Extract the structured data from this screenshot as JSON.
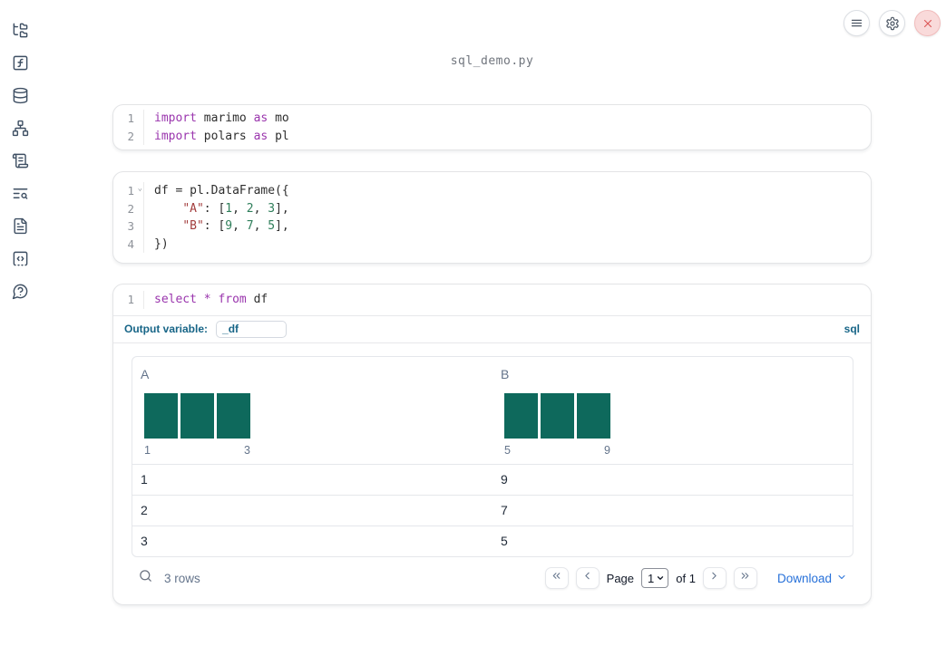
{
  "colors": {
    "accent_sql": "#176587",
    "hist_bar": "#0e695c",
    "link_blue": "#2670d9",
    "keyword": "#9a35ad",
    "string": "#a33d3d",
    "number": "#2e7e5a",
    "code_plain": "#2e2e2e",
    "close_red": "#dc5a5a"
  },
  "sidebar": {
    "items": [
      {
        "icon": "file-tree-icon"
      },
      {
        "icon": "function-square-icon"
      },
      {
        "icon": "database-icon"
      },
      {
        "icon": "dependency-graph-icon"
      },
      {
        "icon": "scroll-outline-icon"
      },
      {
        "icon": "logs-search-icon"
      },
      {
        "icon": "documentation-icon"
      },
      {
        "icon": "snippets-icon"
      },
      {
        "icon": "help-chat-icon"
      }
    ]
  },
  "topbar": {
    "buttons": [
      {
        "icon": "menu-icon"
      },
      {
        "icon": "gear-icon"
      },
      {
        "icon": "close-icon"
      }
    ]
  },
  "notebook": {
    "title": "sql_demo.py"
  },
  "cells": [
    {
      "name": "imports-cell",
      "lines": [
        {
          "num": "1",
          "tokens": [
            [
              "kw",
              "import"
            ],
            [
              "pl",
              " marimo "
            ],
            [
              "kw",
              "as"
            ],
            [
              "pl",
              " mo"
            ]
          ]
        },
        {
          "num": "2",
          "tokens": [
            [
              "kw",
              "import"
            ],
            [
              "pl",
              " polars "
            ],
            [
              "kw",
              "as"
            ],
            [
              "pl",
              " pl"
            ]
          ]
        }
      ]
    },
    {
      "name": "dataframe-cell",
      "lines": [
        {
          "num": "1",
          "fold": true,
          "tokens": [
            [
              "pl",
              "df = pl.DataFrame({"
            ]
          ]
        },
        {
          "num": "2",
          "tokens": [
            [
              "pl",
              "    "
            ],
            [
              "str",
              "\"A\""
            ],
            [
              "pl",
              ": ["
            ],
            [
              "num",
              "1"
            ],
            [
              "pl",
              ", "
            ],
            [
              "num",
              "2"
            ],
            [
              "pl",
              ", "
            ],
            [
              "num",
              "3"
            ],
            [
              "pl",
              "],"
            ]
          ]
        },
        {
          "num": "3",
          "tokens": [
            [
              "pl",
              "    "
            ],
            [
              "str",
              "\"B\""
            ],
            [
              "pl",
              ": ["
            ],
            [
              "num",
              "9"
            ],
            [
              "pl",
              ", "
            ],
            [
              "num",
              "7"
            ],
            [
              "pl",
              ", "
            ],
            [
              "num",
              "5"
            ],
            [
              "pl",
              "],"
            ]
          ]
        },
        {
          "num": "4",
          "tokens": [
            [
              "pl",
              "})"
            ]
          ]
        }
      ]
    },
    {
      "name": "sql-cell",
      "lines": [
        {
          "num": "1",
          "tokens": [
            [
              "kw",
              "select"
            ],
            [
              "pl",
              " "
            ],
            [
              "kw",
              "*"
            ],
            [
              "pl",
              " "
            ],
            [
              "kw",
              "from"
            ],
            [
              "pl",
              " df"
            ]
          ]
        }
      ]
    }
  ],
  "sql_meta": {
    "output_variable_label": "Output variable:",
    "output_variable_value": "_df",
    "language_label": "sql"
  },
  "table": {
    "columns": [
      {
        "header": "A",
        "hist": {
          "bar_heights": [
            1,
            1,
            1
          ],
          "min_label": "1",
          "max_label": "3"
        }
      },
      {
        "header": "B",
        "hist": {
          "bar_heights": [
            1,
            1,
            1
          ],
          "min_label": "5",
          "max_label": "9"
        }
      }
    ],
    "rows": [
      [
        "1",
        "9"
      ],
      [
        "2",
        "7"
      ],
      [
        "3",
        "5"
      ]
    ],
    "footer": {
      "row_count_label": "3 rows",
      "page_label": "Page",
      "page_value": "1",
      "page_total_label": "of 1",
      "download_label": "Download"
    }
  }
}
